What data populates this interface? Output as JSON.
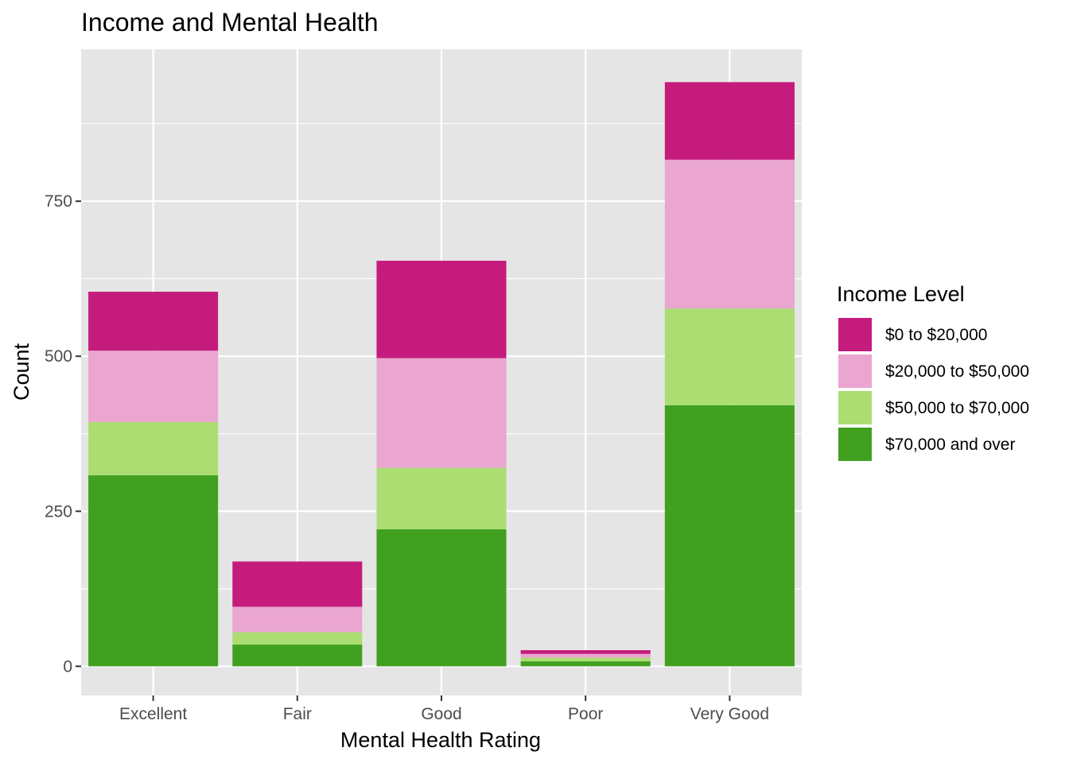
{
  "chart_data": {
    "type": "bar",
    "stacked": true,
    "title": "Income and Mental Health",
    "xlabel": "Mental Health Rating",
    "ylabel": "Count",
    "categories": [
      "Excellent",
      "Fair",
      "Good",
      "Poor",
      "Very Good"
    ],
    "yticks": [
      0,
      250,
      500,
      750
    ],
    "ylim": [
      -47,
      995
    ],
    "grid": true,
    "legend": {
      "title": "Income Level",
      "position": "right"
    },
    "series": [
      {
        "name": "$0 to $20,000",
        "color": "#C51B7D",
        "values": [
          95,
          73,
          157,
          6,
          125
        ]
      },
      {
        "name": "$20,000 to $50,000",
        "color": "#EAA5D0",
        "values": [
          115,
          41,
          177,
          6,
          240
        ]
      },
      {
        "name": "$50,000 to $70,000",
        "color": "#ABDD73",
        "values": [
          86,
          20,
          99,
          6,
          156
        ]
      },
      {
        "name": "$70,000 and over",
        "color": "#41A020",
        "values": [
          308,
          35,
          221,
          8,
          421
        ]
      }
    ]
  },
  "colors": {
    "panel_background": "#E5E5E5",
    "grid_major": "#FFFFFF",
    "tick_color": "#333333"
  }
}
